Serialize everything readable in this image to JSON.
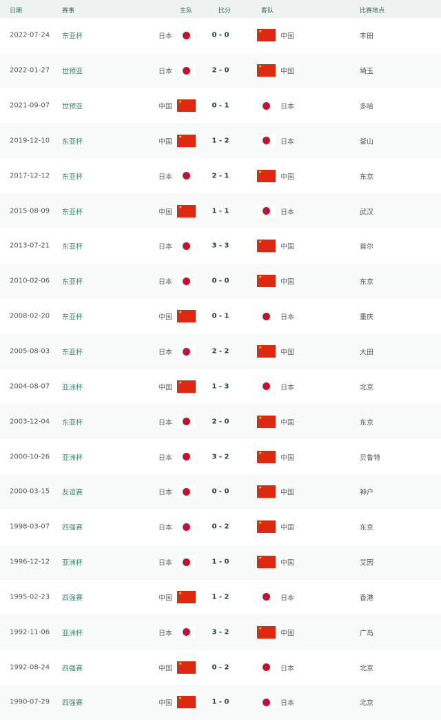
{
  "headers": {
    "date": "日期",
    "comp": "赛事",
    "home": "主队",
    "score": "比分",
    "away": "客队",
    "venue": "比赛地点"
  },
  "colors": {
    "header_bg": "#eef3f1",
    "competition": "#3e8a6c",
    "score": "#1f4a38",
    "china_red": "#de2910",
    "japan_red": "#c8102e"
  },
  "rows": [
    {
      "date": "2022-07-24",
      "comp": "东亚杯",
      "home": "日本",
      "score": "0 - 0",
      "away": "中国",
      "venue": "丰田"
    },
    {
      "date": "2022-01-27",
      "comp": "世预亚",
      "home": "日本",
      "score": "2 - 0",
      "away": "中国",
      "venue": "埼玉"
    },
    {
      "date": "2021-09-07",
      "comp": "世预亚",
      "home": "中国",
      "score": "0 - 1",
      "away": "日本",
      "venue": "多哈"
    },
    {
      "date": "2019-12-10",
      "comp": "东亚杯",
      "home": "中国",
      "score": "1 - 2",
      "away": "日本",
      "venue": "釜山"
    },
    {
      "date": "2017-12-12",
      "comp": "东亚杯",
      "home": "日本",
      "score": "2 - 1",
      "away": "中国",
      "venue": "东京"
    },
    {
      "date": "2015-08-09",
      "comp": "东亚杯",
      "home": "中国",
      "score": "1 - 1",
      "away": "日本",
      "venue": "武汉"
    },
    {
      "date": "2013-07-21",
      "comp": "东亚杯",
      "home": "日本",
      "score": "3 - 3",
      "away": "中国",
      "venue": "首尔"
    },
    {
      "date": "2010-02-06",
      "comp": "东亚杯",
      "home": "日本",
      "score": "0 - 0",
      "away": "中国",
      "venue": "东京"
    },
    {
      "date": "2008-02-20",
      "comp": "东亚杯",
      "home": "中国",
      "score": "0 - 1",
      "away": "日本",
      "venue": "重庆"
    },
    {
      "date": "2005-08-03",
      "comp": "东亚杯",
      "home": "日本",
      "score": "2 - 2",
      "away": "中国",
      "venue": "大田"
    },
    {
      "date": "2004-08-07",
      "comp": "亚洲杯",
      "home": "中国",
      "score": "1 - 3",
      "away": "日本",
      "venue": "北京"
    },
    {
      "date": "2003-12-04",
      "comp": "东亚杯",
      "home": "日本",
      "score": "2 - 0",
      "away": "中国",
      "venue": "东京"
    },
    {
      "date": "2000-10-26",
      "comp": "亚洲杯",
      "home": "日本",
      "score": "3 - 2",
      "away": "中国",
      "venue": "贝鲁特"
    },
    {
      "date": "2000-03-15",
      "comp": "友谊赛",
      "home": "日本",
      "score": "0 - 0",
      "away": "中国",
      "venue": "神户"
    },
    {
      "date": "1998-03-07",
      "comp": "四强赛",
      "home": "日本",
      "score": "0 - 2",
      "away": "中国",
      "venue": "东京"
    },
    {
      "date": "1996-12-12",
      "comp": "亚洲杯",
      "home": "日本",
      "score": "1 - 0",
      "away": "中国",
      "venue": "艾因"
    },
    {
      "date": "1995-02-23",
      "comp": "四强赛",
      "home": "中国",
      "score": "1 - 2",
      "away": "日本",
      "venue": "香港"
    },
    {
      "date": "1992-11-06",
      "comp": "亚洲杯",
      "home": "日本",
      "score": "3 - 2",
      "away": "中国",
      "venue": "广岛"
    },
    {
      "date": "1992-08-24",
      "comp": "四强赛",
      "home": "中国",
      "score": "0 - 2",
      "away": "日本",
      "venue": "北京"
    },
    {
      "date": "1990-07-29",
      "comp": "四强赛",
      "home": "中国",
      "score": "1 - 0",
      "away": "日本",
      "venue": "北京"
    }
  ]
}
